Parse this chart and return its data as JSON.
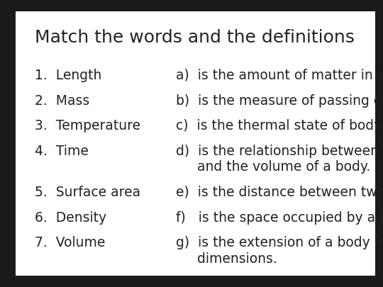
{
  "title": "Match the words and the definitions",
  "background_color": "#ffffff",
  "outer_background": "#1a1a1a",
  "title_fontsize": 18,
  "body_fontsize": 13.5,
  "left_items": [
    "1.  Length",
    "2.  Mass",
    "3.  Temperature",
    "4.  Time",
    "5.  Surface area",
    "6.  Density",
    "7.  Volume"
  ],
  "right_items": [
    [
      "a)  is the amount of matter in a body."
    ],
    [
      "b)  is the measure of passing events."
    ],
    [
      "c)  is the thermal state of body."
    ],
    [
      "d)  is the relationship between the mass",
      "     and the volume of a body."
    ],
    [
      "e)  is the distance between two points."
    ],
    [
      "f)   is the space occupied by a body."
    ],
    [
      "g)  is the extension of a body in two",
      "     dimensions."
    ]
  ],
  "font_family": "DejaVu Sans",
  "text_color": "#222222"
}
